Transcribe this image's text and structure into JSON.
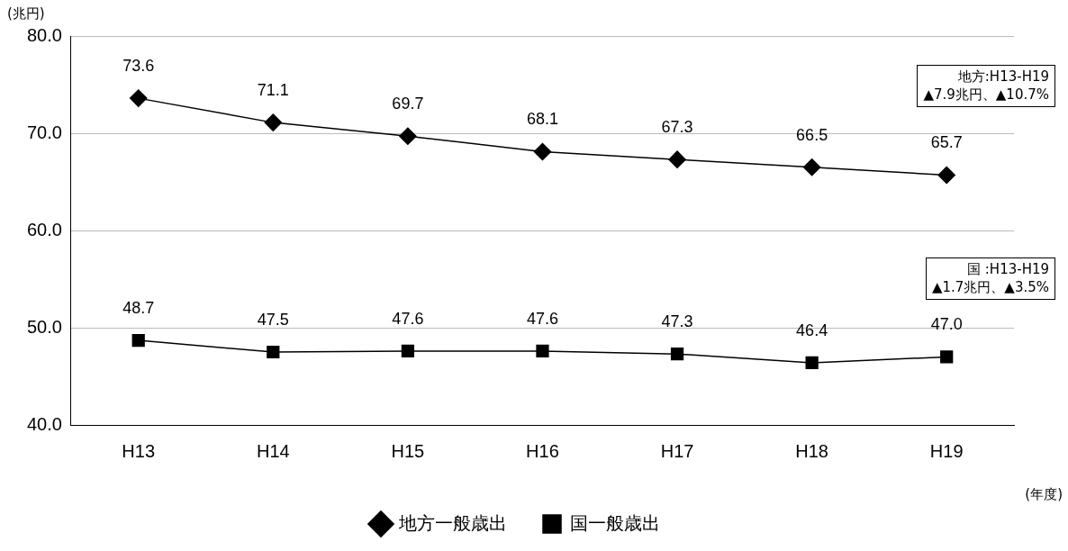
{
  "chart_data": {
    "type": "line",
    "categories": [
      "H13",
      "H14",
      "H15",
      "H16",
      "H17",
      "H18",
      "H19"
    ],
    "series": [
      {
        "name": "地方一般歳出",
        "color": "#000000",
        "marker": "diamond",
        "values": [
          73.6,
          71.1,
          69.7,
          68.1,
          67.3,
          66.5,
          65.7
        ],
        "value_labels": [
          "73.6",
          "71.1",
          "69.7",
          "68.1",
          "67.3",
          "66.5",
          "65.7"
        ]
      },
      {
        "name": "国一般歳出",
        "color": "#000000",
        "marker": "square",
        "values": [
          48.7,
          47.5,
          47.6,
          47.6,
          47.3,
          46.4,
          47.0
        ],
        "value_labels": [
          "48.7",
          "47.5",
          "47.6",
          "47.6",
          "47.3",
          "46.4",
          "47.0"
        ]
      }
    ],
    "ylabel": "(兆円)",
    "xlabel": "(年度)",
    "ylim": [
      40,
      80
    ],
    "yticks": [
      {
        "value": 40,
        "label": "40.0"
      },
      {
        "value": 50,
        "label": "50.0"
      },
      {
        "value": 60,
        "label": "60.0"
      },
      {
        "value": 70,
        "label": "70.0"
      },
      {
        "value": 80,
        "label": "80.0"
      }
    ],
    "grid": "y",
    "legend": "bottom",
    "line_style": "solid",
    "annotations": [
      "地方:H13-H19\n▲7.9兆円、▲10.7%",
      "国 :H13-H19\n▲1.7兆円、▲3.5%"
    ]
  }
}
